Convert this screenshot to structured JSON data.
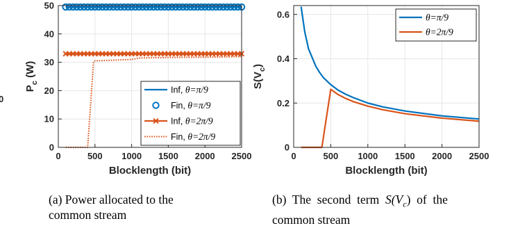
{
  "chart_data": [
    {
      "type": "line",
      "panel": "a",
      "xlabel": "Blocklength (bit)",
      "ylabel": "P_c (W)",
      "ylabel_main": "P",
      "ylabel_sub": "c",
      "ylabel_unit": " (W)",
      "xlim": [
        0,
        2500
      ],
      "ylim": [
        0,
        50
      ],
      "xticks": [
        0,
        500,
        1000,
        1500,
        2000,
        2500
      ],
      "xticklabels": [
        "0",
        "500",
        "1000",
        "1500",
        "2000",
        "2500"
      ],
      "yticks": [
        0,
        10,
        20,
        30,
        40,
        50
      ],
      "yticklabels": [
        "0",
        "10",
        "20",
        "30",
        "40",
        "50"
      ],
      "grid": true,
      "legend_position": "bottom-right",
      "series": [
        {
          "name": "Inf, θ=π/9",
          "legend_prefix": "Inf, ",
          "legend_theta": "θ=π/9",
          "color": "#0072BD",
          "style": "solid",
          "marker": "none",
          "x": [
            100,
            2500
          ],
          "y": [
            49.5,
            49.5
          ]
        },
        {
          "name": "Fin, θ=π/9",
          "legend_prefix": "Fin, ",
          "legend_theta": "θ=π/9",
          "color": "#0072BD",
          "style": "none",
          "marker": "circle",
          "x": [
            100,
            150,
            200,
            250,
            300,
            350,
            400,
            450,
            500,
            550,
            600,
            650,
            700,
            750,
            800,
            850,
            900,
            950,
            1000,
            1050,
            1100,
            1150,
            1200,
            1250,
            1300,
            1350,
            1400,
            1450,
            1500,
            1550,
            1600,
            1650,
            1700,
            1750,
            1800,
            1850,
            1900,
            1950,
            2000,
            2050,
            2100,
            2150,
            2200,
            2250,
            2300,
            2350,
            2400,
            2450,
            2500
          ],
          "y": [
            49.5,
            49.5,
            49.5,
            49.5,
            49.5,
            49.5,
            49.5,
            49.5,
            49.5,
            49.5,
            49.5,
            49.5,
            49.5,
            49.5,
            49.5,
            49.5,
            49.5,
            49.5,
            49.5,
            49.5,
            49.5,
            49.5,
            49.5,
            49.5,
            49.5,
            49.5,
            49.5,
            49.5,
            49.5,
            49.5,
            49.5,
            49.5,
            49.5,
            49.5,
            49.5,
            49.5,
            49.5,
            49.5,
            49.5,
            49.5,
            49.5,
            49.5,
            49.5,
            49.5,
            49.5,
            49.5,
            49.5,
            49.5,
            49.5
          ]
        },
        {
          "name": "Inf, θ=2π/9",
          "legend_prefix": "Inf, ",
          "legend_theta": "θ=2π/9",
          "color": "#D95319",
          "style": "solid",
          "marker": "x",
          "x": [
            100,
            150,
            200,
            250,
            300,
            350,
            400,
            450,
            500,
            550,
            600,
            650,
            700,
            750,
            800,
            850,
            900,
            950,
            1000,
            1050,
            1100,
            1150,
            1200,
            1250,
            1300,
            1350,
            1400,
            1450,
            1500,
            1550,
            1600,
            1650,
            1700,
            1750,
            1800,
            1850,
            1900,
            1950,
            2000,
            2050,
            2100,
            2150,
            2200,
            2250,
            2300,
            2350,
            2400,
            2450,
            2500
          ],
          "y": [
            33,
            33,
            33,
            33,
            33,
            33,
            33,
            33,
            33,
            33,
            33,
            33,
            33,
            33,
            33,
            33,
            33,
            33,
            33,
            33,
            33,
            33,
            33,
            33,
            33,
            33,
            33,
            33,
            33,
            33,
            33,
            33,
            33,
            33,
            33,
            33,
            33,
            33,
            33,
            33,
            33,
            33,
            33,
            33,
            33,
            33,
            33,
            33,
            33
          ]
        },
        {
          "name": "Fin, θ=2π/9",
          "legend_prefix": "Fin, ",
          "legend_theta": "θ=2π/9",
          "color": "#D95319",
          "style": "dotted",
          "marker": "none",
          "x": [
            100,
            400,
            480,
            500,
            700,
            1000,
            1100,
            1500,
            2000,
            2500
          ],
          "y": [
            0,
            0,
            30,
            30.5,
            30.7,
            31.0,
            31.5,
            31.7,
            31.8,
            32.0
          ]
        }
      ],
      "caption": "(a) Power allocated to the common stream",
      "caption_line1": "(a) Power allocated to the",
      "caption_line2": "common stream"
    },
    {
      "type": "line",
      "panel": "b",
      "xlabel": "Blocklength (bit)",
      "ylabel": "S(V_c)",
      "ylabel_main": "S(V",
      "ylabel_sub": "c",
      "ylabel_unit": ")",
      "xlim": [
        0,
        2500
      ],
      "ylim": [
        0,
        0.64
      ],
      "xticks": [
        0,
        500,
        1000,
        1500,
        2000,
        2500
      ],
      "xticklabels": [
        "0",
        "500",
        "1000",
        "1500",
        "2000",
        "2500"
      ],
      "yticks": [
        0,
        0.2,
        0.4,
        0.6
      ],
      "yticklabels": [
        "0",
        "0.2",
        "0.4",
        "0.6"
      ],
      "grid": true,
      "legend_position": "top-right",
      "series": [
        {
          "name": "θ=π/9",
          "legend_prefix": "",
          "legend_theta": "θ=π/9",
          "color": "#0072BD",
          "style": "solid",
          "marker": "none",
          "x": [
            100,
            150,
            200,
            250,
            300,
            350,
            400,
            500,
            600,
            700,
            800,
            1000,
            1200,
            1500,
            2000,
            2500
          ],
          "y": [
            0.635,
            0.52,
            0.445,
            0.405,
            0.365,
            0.338,
            0.315,
            0.283,
            0.258,
            0.24,
            0.225,
            0.2,
            0.183,
            0.164,
            0.142,
            0.128
          ]
        },
        {
          "name": "θ=2π/9",
          "legend_prefix": "",
          "legend_theta": "θ=2π/9",
          "color": "#D95319",
          "style": "solid",
          "marker": "none",
          "x": [
            100,
            380,
            500,
            600,
            700,
            800,
            1000,
            1200,
            1500,
            2000,
            2500
          ],
          "y": [
            0,
            0,
            0.262,
            0.238,
            0.221,
            0.207,
            0.186,
            0.17,
            0.152,
            0.132,
            0.118
          ]
        }
      ],
      "caption": "(b) The second term S(V_c) of the common stream",
      "caption_line1_pre": "(b)  The  second  term  ",
      "caption_line1_math": "S(V",
      "caption_line1_sub": "c",
      "caption_line1_close": ")",
      "caption_line1_post": "  of  the",
      "caption_line2": "common stream"
    }
  ],
  "colors": {
    "blue": "#0072BD",
    "orange": "#D95319",
    "grid": "#e6e6e6",
    "axis": "#262626"
  },
  "partial_left_label": "0"
}
